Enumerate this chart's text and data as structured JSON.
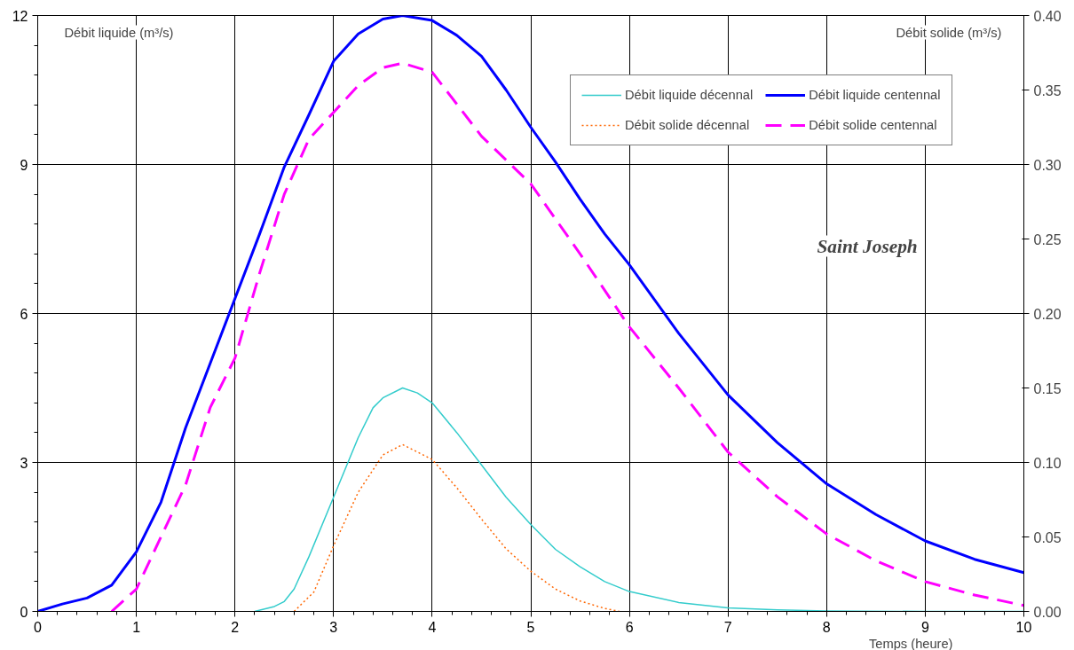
{
  "chart_data": {
    "type": "line",
    "ylabel": "Débit liquide  (m³/s)",
    "y2label": "Débit solide  (m³/s)",
    "xlabel": "Temps (heure)",
    "annotations": [
      "Saint Joseph"
    ],
    "xlim": [
      0,
      10
    ],
    "xticks": [
      0,
      1,
      2,
      3,
      4,
      5,
      6,
      7,
      8,
      9,
      10
    ],
    "ylim": [
      0,
      12
    ],
    "yticks": [
      0,
      3,
      6,
      9,
      12
    ],
    "y2lim": [
      0,
      0.4
    ],
    "y2ticks": [
      {
        "value": 0,
        "label": "0.00"
      },
      {
        "value": 0.05,
        "label": "0.05"
      },
      {
        "value": 0.1,
        "label": "0.10"
      },
      {
        "value": 0.15,
        "label": "0.15"
      },
      {
        "value": 0.2,
        "label": "0.20"
      },
      {
        "value": 0.25,
        "label": "0.25"
      },
      {
        "value": 0.3,
        "label": "0.30"
      },
      {
        "value": 0.35,
        "label": "0.35"
      },
      {
        "value": 0.4,
        "label": "0.40"
      }
    ],
    "grid": true,
    "legend": "top right",
    "marker": "none",
    "series": [
      {
        "name": "Débit liquide décennal",
        "color": "#33cccc",
        "line_style": "solid",
        "x": [
          2.2,
          2.4,
          2.5,
          2.6,
          2.75,
          3,
          3.25,
          3.4,
          3.5,
          3.7,
          3.85,
          4,
          4.25,
          4.5,
          4.75,
          5,
          5.25,
          5.5,
          5.75,
          6,
          6.5,
          7,
          7.5,
          8,
          9,
          10
        ],
        "values": [
          0,
          0.1,
          0.2,
          0.45,
          1.1,
          2.3,
          3.5,
          4.1,
          4.3,
          4.5,
          4.4,
          4.2,
          3.6,
          2.95,
          2.3,
          1.75,
          1.25,
          0.9,
          0.6,
          0.4,
          0.18,
          0.07,
          0.03,
          0.01,
          0,
          0
        ]
      },
      {
        "name": "Débit liquide centennal",
        "color": "#0000ff",
        "line_style": "solid",
        "x": [
          0,
          0.25,
          0.5,
          0.75,
          1,
          1.25,
          1.5,
          1.75,
          2,
          2.25,
          2.5,
          2.75,
          3,
          3.25,
          3.5,
          3.7,
          4,
          4.25,
          4.5,
          4.75,
          5,
          5.25,
          5.5,
          5.75,
          6,
          6.5,
          7,
          7.5,
          8,
          8.5,
          9,
          9.5,
          10
        ],
        "values": [
          0,
          0.15,
          0.27,
          0.53,
          1.2,
          2.2,
          3.7,
          5.0,
          6.3,
          7.6,
          8.95,
          10.0,
          11.08,
          11.63,
          11.93,
          12,
          11.9,
          11.6,
          11.18,
          10.5,
          9.75,
          9.05,
          8.3,
          7.6,
          6.98,
          5.6,
          4.36,
          3.4,
          2.57,
          1.95,
          1.42,
          1.05,
          0.78
        ]
      },
      {
        "name": "Débit solide décennal",
        "color": "#ff6600",
        "line_style": "dotted",
        "axis": "y2",
        "x": [
          2.6,
          2.8,
          3,
          3.25,
          3.5,
          3.7,
          4,
          4.25,
          4.5,
          4.75,
          5,
          5.25,
          5.5,
          5.75,
          5.9
        ],
        "values": [
          0,
          0.013,
          0.044,
          0.08,
          0.105,
          0.112,
          0.102,
          0.083,
          0.062,
          0.042,
          0.027,
          0.015,
          0.007,
          0.002,
          0
        ]
      },
      {
        "name": "Débit solide centennal",
        "color": "#ff00ff",
        "line_style": "dashed",
        "axis": "y2",
        "x": [
          0.75,
          1,
          1.25,
          1.5,
          1.75,
          2,
          2.25,
          2.5,
          2.75,
          3,
          3.25,
          3.5,
          3.7,
          4,
          4.5,
          5,
          5.5,
          6,
          6.5,
          7,
          7.5,
          8,
          8.5,
          9,
          9.5,
          10
        ],
        "values": [
          0,
          0.015,
          0.05,
          0.085,
          0.137,
          0.17,
          0.227,
          0.28,
          0.317,
          0.335,
          0.353,
          0.365,
          0.368,
          0.362,
          0.319,
          0.287,
          0.24,
          0.191,
          0.15,
          0.107,
          0.077,
          0.052,
          0.034,
          0.02,
          0.011,
          0.004
        ]
      }
    ]
  }
}
